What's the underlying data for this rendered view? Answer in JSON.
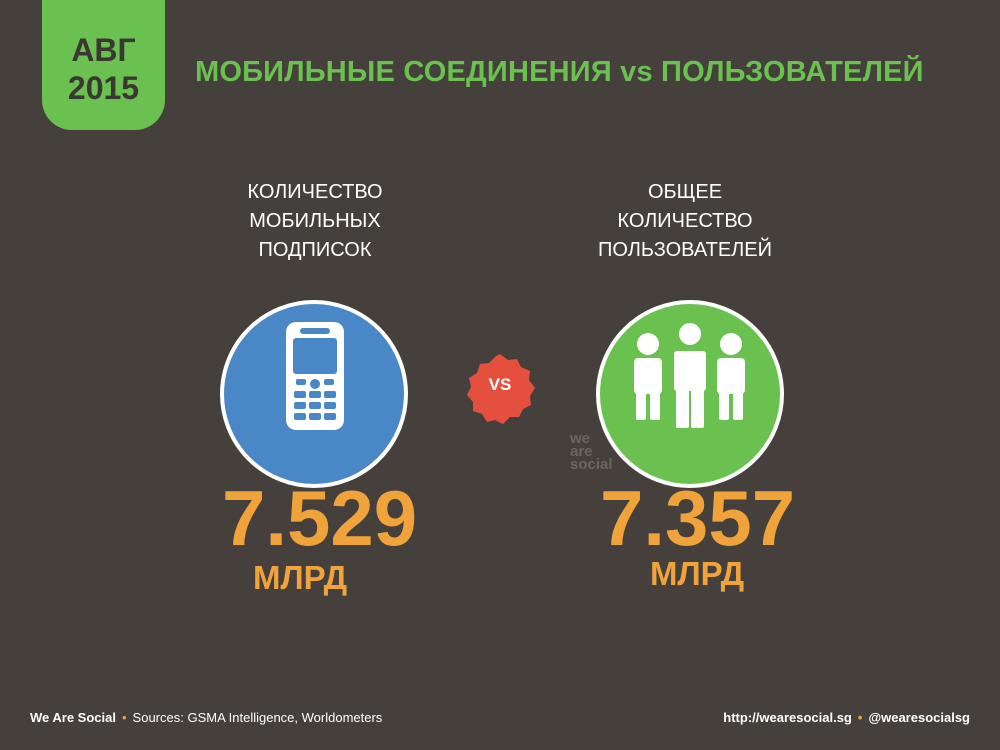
{
  "date_badge": {
    "month": "АВГ",
    "year": "2015"
  },
  "title": "МОБИЛЬНЫЕ СОЕДИНЕНИЯ vs ПОЛЬЗОВАТЕЛЕЙ",
  "left": {
    "label_lines": [
      "КОЛИЧЕСТВО",
      "МОБИЛЬНЫХ",
      "ПОДПИСОК"
    ],
    "icon": "mobile-phone-icon",
    "value": "7.529",
    "unit": "МЛРД"
  },
  "right": {
    "label_lines": [
      "ОБЩЕЕ",
      "КОЛИЧЕСТВО",
      "ПОЛЬЗОВАТЕЛЕЙ"
    ],
    "icon": "people-group-icon",
    "value": "7.357",
    "unit": "МЛРД"
  },
  "vs_label": "VS",
  "watermark": [
    "we",
    "are",
    "social"
  ],
  "footer": {
    "brand": "We Are Social",
    "sources": "Sources: GSMA Intelligence, Worldometers",
    "url": "http://wearesocial.sg",
    "handle": "@wearesocialsg"
  },
  "colors": {
    "background": "#45403c",
    "green": "#6ac14f",
    "blue": "#4a87c6",
    "orange": "#f0a33a",
    "red": "#e5503e"
  }
}
